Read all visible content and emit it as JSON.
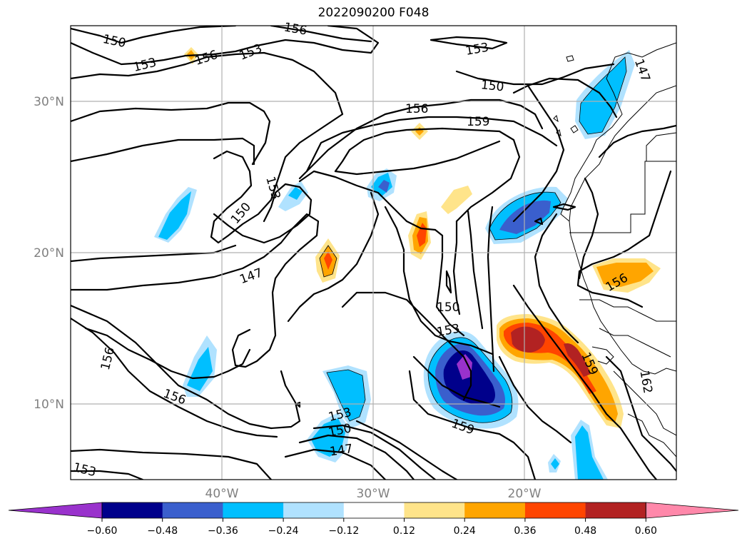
{
  "title": "2022090200 F048",
  "map": {
    "lon_labels": [
      {
        "text": "40°W",
        "lon": -40
      },
      {
        "text": "30°W",
        "lon": -30
      },
      {
        "text": "20°W",
        "lon": -20
      }
    ],
    "lat_labels": [
      {
        "text": "30°N",
        "lat": 30
      },
      {
        "text": "20°N",
        "lat": 20
      },
      {
        "text": "10°N",
        "lat": 10
      }
    ],
    "extent": {
      "lon_min": -50,
      "lon_max": -10,
      "lat_min": 5,
      "lat_max": 35
    },
    "contour_labels": [
      "147",
      "150",
      "153",
      "156",
      "159",
      "162"
    ]
  },
  "colorbar": {
    "ticks": [
      "−0.60",
      "−0.48",
      "−0.36",
      "−0.24",
      "−0.12",
      "0.12",
      "0.24",
      "0.36",
      "0.48",
      "0.60"
    ],
    "colors": [
      "#9932cc",
      "#00008b",
      "#3a5fcd",
      "#00bfff",
      "#b0e2ff",
      "#ffffff",
      "#ffe48a",
      "#ffa500",
      "#ff4500",
      "#b22222",
      "#ff88aa"
    ]
  }
}
